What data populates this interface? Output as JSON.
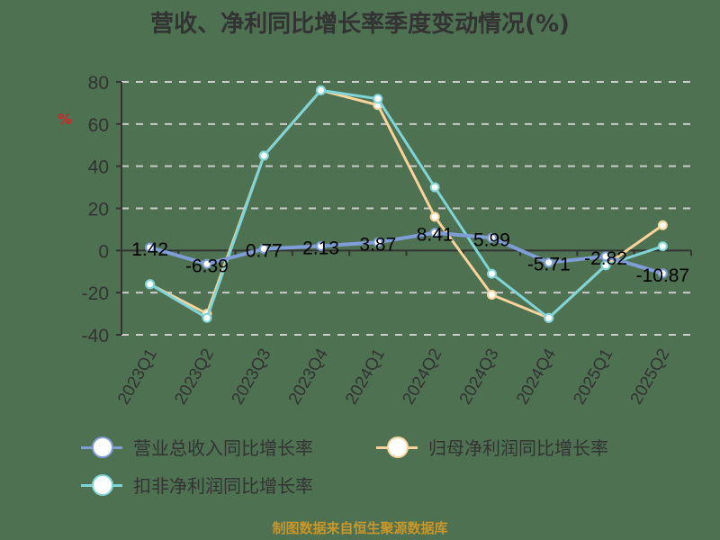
{
  "title": "营收、净利同比增长率季度变动情况(%)",
  "y_unit_label": "%",
  "source": "制图数据来自恒生聚源数据库",
  "colors": {
    "revenue": "#7f9ed8",
    "net_profit": "#f9d49a",
    "deducted": "#7fd4d8",
    "unit": "#e02020",
    "source": "#c8962a"
  },
  "legend": [
    {
      "label": "营业总收入同比增长率",
      "color": "#7f9ed8"
    },
    {
      "label": "归母净利润同比增长率",
      "color": "#f9d49a"
    },
    {
      "label": "扣非净利润同比增长率",
      "color": "#7fd4d8"
    }
  ],
  "chart_data": {
    "type": "line",
    "title": "营收、净利同比增长率季度变动情况(%)",
    "xlabel": "",
    "ylabel": "%",
    "ylim": [
      -40,
      80
    ],
    "yticks": [
      80,
      60,
      40,
      20,
      0,
      -20,
      -40
    ],
    "grid": true,
    "legend_position": "bottom",
    "categories": [
      "2023Q1",
      "2023Q2",
      "2023Q3",
      "2023Q4",
      "2024Q1",
      "2024Q2",
      "2024Q3",
      "2024Q4",
      "2025Q1",
      "2025Q2"
    ],
    "series": [
      {
        "name": "营业总收入同比增长率",
        "values": [
          1.42,
          -6.39,
          0.77,
          2.13,
          3.87,
          8.41,
          5.99,
          -5.71,
          -2.82,
          -10.87
        ],
        "labels": [
          "1.42",
          "-6.39",
          "0.77",
          "2.13",
          "3.87",
          "8.41",
          "5.99",
          "-5.71",
          "-2.82",
          "-10.87"
        ]
      },
      {
        "name": "归母净利润同比增长率",
        "values": [
          -16,
          -30,
          45,
          76,
          69,
          16,
          -21,
          -32,
          -7,
          12
        ]
      },
      {
        "name": "扣非净利润同比增长率",
        "values": [
          -16,
          -32,
          45,
          76,
          72,
          30,
          -11,
          -32,
          -7,
          2
        ]
      }
    ]
  }
}
